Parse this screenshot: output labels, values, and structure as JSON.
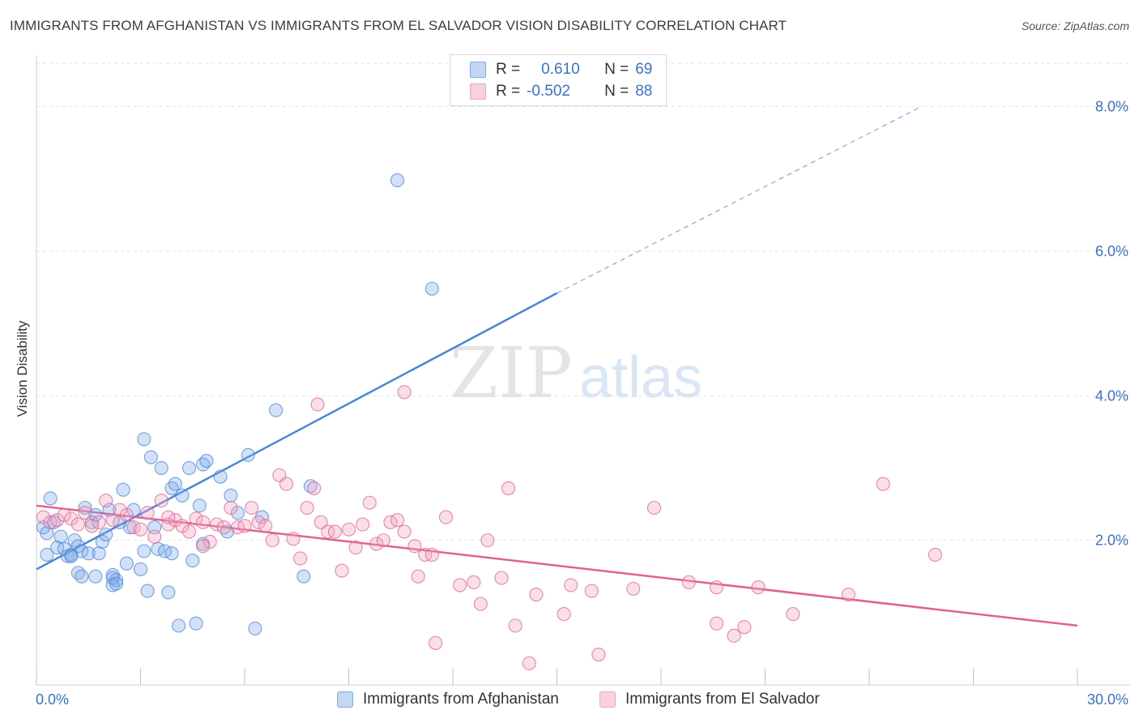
{
  "header": {
    "title": "IMMIGRANTS FROM AFGHANISTAN VS IMMIGRANTS FROM EL SALVADOR VISION DISABILITY CORRELATION CHART",
    "source": "Source: ZipAtlas.com"
  },
  "watermark": {
    "zip": "ZIP",
    "atlas": "atlas"
  },
  "legend": {
    "rows": [
      {
        "r_label": "R =",
        "r_value": "0.610",
        "n_label": "N =",
        "n_value": "69",
        "color": "#7ea9e8"
      },
      {
        "r_label": "R =",
        "r_value": "-0.502",
        "n_label": "N =",
        "n_value": "88",
        "color": "#f2a3bf"
      }
    ]
  },
  "colors": {
    "blue": "#4a86d8",
    "blue_fill": "rgba(126,169,232,0.35)",
    "pink": "#e0628f",
    "pink_fill": "rgba(242,163,191,0.35)",
    "grid": "#e2e2e2",
    "tick_label": "#3b72c6"
  },
  "chart_data": {
    "type": "scatter",
    "title": "IMMIGRANTS FROM AFGHANISTAN VS IMMIGRANTS FROM EL SALVADOR VISION DISABILITY CORRELATION CHART",
    "xlabel": "",
    "ylabel": "Vision Disability",
    "xlim": [
      0,
      30
    ],
    "ylim": [
      0,
      8.6
    ],
    "x_tick_labels": [
      "0.0%",
      "30.0%"
    ],
    "y_ticks": [
      2,
      4,
      6,
      8
    ],
    "y_tick_labels": [
      "2.0%",
      "4.0%",
      "6.0%",
      "8.0%"
    ],
    "grid": true,
    "legend_position": "top-center",
    "series": [
      {
        "name": "Immigrants from Afghanistan",
        "color": "#4a86d8",
        "r": 0.61,
        "n": 69,
        "trend": {
          "x0": 0,
          "y0": 1.6,
          "x1": 15,
          "y1": 5.42,
          "dash_to_x": 25.5,
          "dash_to_y": 8.0
        },
        "points": [
          [
            0.2,
            2.18
          ],
          [
            0.3,
            2.1
          ],
          [
            0.4,
            2.58
          ],
          [
            0.5,
            2.25
          ],
          [
            0.3,
            1.8
          ],
          [
            0.6,
            1.9
          ],
          [
            0.8,
            1.88
          ],
          [
            0.7,
            2.05
          ],
          [
            0.9,
            1.78
          ],
          [
            1.0,
            1.8
          ],
          [
            1.1,
            2.0
          ],
          [
            1.2,
            1.92
          ],
          [
            1.3,
            1.85
          ],
          [
            1.4,
            2.45
          ],
          [
            1.5,
            1.82
          ],
          [
            1.6,
            2.25
          ],
          [
            1.7,
            2.35
          ],
          [
            1.8,
            1.82
          ],
          [
            1.9,
            1.98
          ],
          [
            2.0,
            2.08
          ],
          [
            2.1,
            2.42
          ],
          [
            2.2,
            1.52
          ],
          [
            2.3,
            1.45
          ],
          [
            2.4,
            2.25
          ],
          [
            2.5,
            2.7
          ],
          [
            2.6,
            1.68
          ],
          [
            2.7,
            2.18
          ],
          [
            2.8,
            2.42
          ],
          [
            2.2,
            1.38
          ],
          [
            1.2,
            1.55
          ],
          [
            1.3,
            1.5
          ],
          [
            1.7,
            1.5
          ],
          [
            2.2,
            1.48
          ],
          [
            3.0,
            1.6
          ],
          [
            3.1,
            1.85
          ],
          [
            3.2,
            1.3
          ],
          [
            3.3,
            3.15
          ],
          [
            3.4,
            2.18
          ],
          [
            3.5,
            1.88
          ],
          [
            3.6,
            3.0
          ],
          [
            3.7,
            1.85
          ],
          [
            3.8,
            1.28
          ],
          [
            3.9,
            1.82
          ],
          [
            3.9,
            2.72
          ],
          [
            4.0,
            2.78
          ],
          [
            4.1,
            0.82
          ],
          [
            4.2,
            2.62
          ],
          [
            4.4,
            3.0
          ],
          [
            4.5,
            1.72
          ],
          [
            4.7,
            2.48
          ],
          [
            4.8,
            3.05
          ],
          [
            4.9,
            3.1
          ],
          [
            4.8,
            1.95
          ],
          [
            5.3,
            2.88
          ],
          [
            5.5,
            2.12
          ],
          [
            5.6,
            2.62
          ],
          [
            5.8,
            2.38
          ],
          [
            6.1,
            3.18
          ],
          [
            6.3,
            0.78
          ],
          [
            6.5,
            2.32
          ],
          [
            6.9,
            3.8
          ],
          [
            7.7,
            1.5
          ],
          [
            7.9,
            2.75
          ],
          [
            4.6,
            0.85
          ],
          [
            10.4,
            6.98
          ],
          [
            11.4,
            5.48
          ],
          [
            3.1,
            3.4
          ],
          [
            1.0,
            1.78
          ],
          [
            2.3,
            1.4
          ]
        ]
      },
      {
        "name": "Immigrants from El Salvador",
        "color": "#e0628f",
        "r": -0.502,
        "n": 88,
        "trend": {
          "x0": 0,
          "y0": 2.48,
          "x1": 30,
          "y1": 0.82
        },
        "points": [
          [
            0.2,
            2.32
          ],
          [
            0.4,
            2.25
          ],
          [
            0.6,
            2.28
          ],
          [
            0.8,
            2.35
          ],
          [
            1.0,
            2.3
          ],
          [
            1.2,
            2.22
          ],
          [
            1.4,
            2.38
          ],
          [
            1.6,
            2.2
          ],
          [
            1.8,
            2.25
          ],
          [
            2.0,
            2.55
          ],
          [
            2.2,
            2.28
          ],
          [
            2.4,
            2.42
          ],
          [
            2.6,
            2.35
          ],
          [
            2.8,
            2.18
          ],
          [
            3.0,
            2.15
          ],
          [
            3.2,
            2.38
          ],
          [
            3.4,
            2.05
          ],
          [
            3.6,
            2.55
          ],
          [
            3.8,
            2.22
          ],
          [
            4.0,
            2.28
          ],
          [
            4.2,
            2.2
          ],
          [
            4.4,
            2.12
          ],
          [
            4.6,
            2.3
          ],
          [
            4.8,
            2.25
          ],
          [
            5.0,
            1.98
          ],
          [
            5.2,
            2.22
          ],
          [
            5.4,
            2.18
          ],
          [
            5.6,
            2.45
          ],
          [
            5.8,
            2.18
          ],
          [
            6.0,
            2.2
          ],
          [
            6.2,
            2.45
          ],
          [
            6.4,
            2.25
          ],
          [
            6.6,
            2.2
          ],
          [
            6.8,
            2.0
          ],
          [
            7.0,
            2.9
          ],
          [
            7.2,
            2.78
          ],
          [
            7.4,
            2.02
          ],
          [
            7.6,
            1.75
          ],
          [
            7.8,
            2.45
          ],
          [
            8.0,
            2.72
          ],
          [
            8.2,
            2.25
          ],
          [
            8.4,
            2.12
          ],
          [
            8.6,
            2.12
          ],
          [
            8.8,
            1.58
          ],
          [
            9.0,
            2.15
          ],
          [
            9.2,
            1.9
          ],
          [
            9.4,
            2.22
          ],
          [
            9.6,
            2.52
          ],
          [
            9.8,
            1.95
          ],
          [
            10.0,
            2.0
          ],
          [
            10.2,
            2.25
          ],
          [
            10.4,
            2.28
          ],
          [
            10.6,
            2.12
          ],
          [
            10.9,
            1.92
          ],
          [
            11.0,
            1.5
          ],
          [
            11.2,
            1.8
          ],
          [
            11.4,
            1.8
          ],
          [
            11.8,
            2.32
          ],
          [
            12.2,
            1.38
          ],
          [
            12.6,
            1.42
          ],
          [
            12.8,
            1.12
          ],
          [
            13.0,
            2.0
          ],
          [
            13.4,
            1.48
          ],
          [
            13.6,
            2.72
          ],
          [
            13.8,
            0.82
          ],
          [
            14.4,
            1.25
          ],
          [
            15.2,
            0.98
          ],
          [
            16.0,
            1.3
          ],
          [
            16.2,
            0.42
          ],
          [
            17.2,
            1.33
          ],
          [
            17.8,
            2.45
          ],
          [
            18.8,
            1.42
          ],
          [
            19.6,
            0.85
          ],
          [
            19.6,
            1.35
          ],
          [
            20.1,
            0.68
          ],
          [
            20.4,
            0.8
          ],
          [
            20.8,
            1.35
          ],
          [
            21.8,
            0.98
          ],
          [
            23.4,
            1.25
          ],
          [
            24.4,
            2.78
          ],
          [
            25.9,
            1.8
          ],
          [
            15.4,
            1.38
          ],
          [
            8.1,
            3.88
          ],
          [
            10.6,
            4.05
          ],
          [
            11.5,
            0.58
          ],
          [
            14.2,
            0.3
          ],
          [
            4.8,
            1.92
          ],
          [
            3.8,
            2.32
          ]
        ]
      }
    ]
  },
  "bottom_legend": {
    "items": [
      {
        "label": "Immigrants from Afghanistan",
        "color": "#7ea9e8"
      },
      {
        "label": "Immigrants from El Salvador",
        "color": "#f2a3bf"
      }
    ]
  }
}
